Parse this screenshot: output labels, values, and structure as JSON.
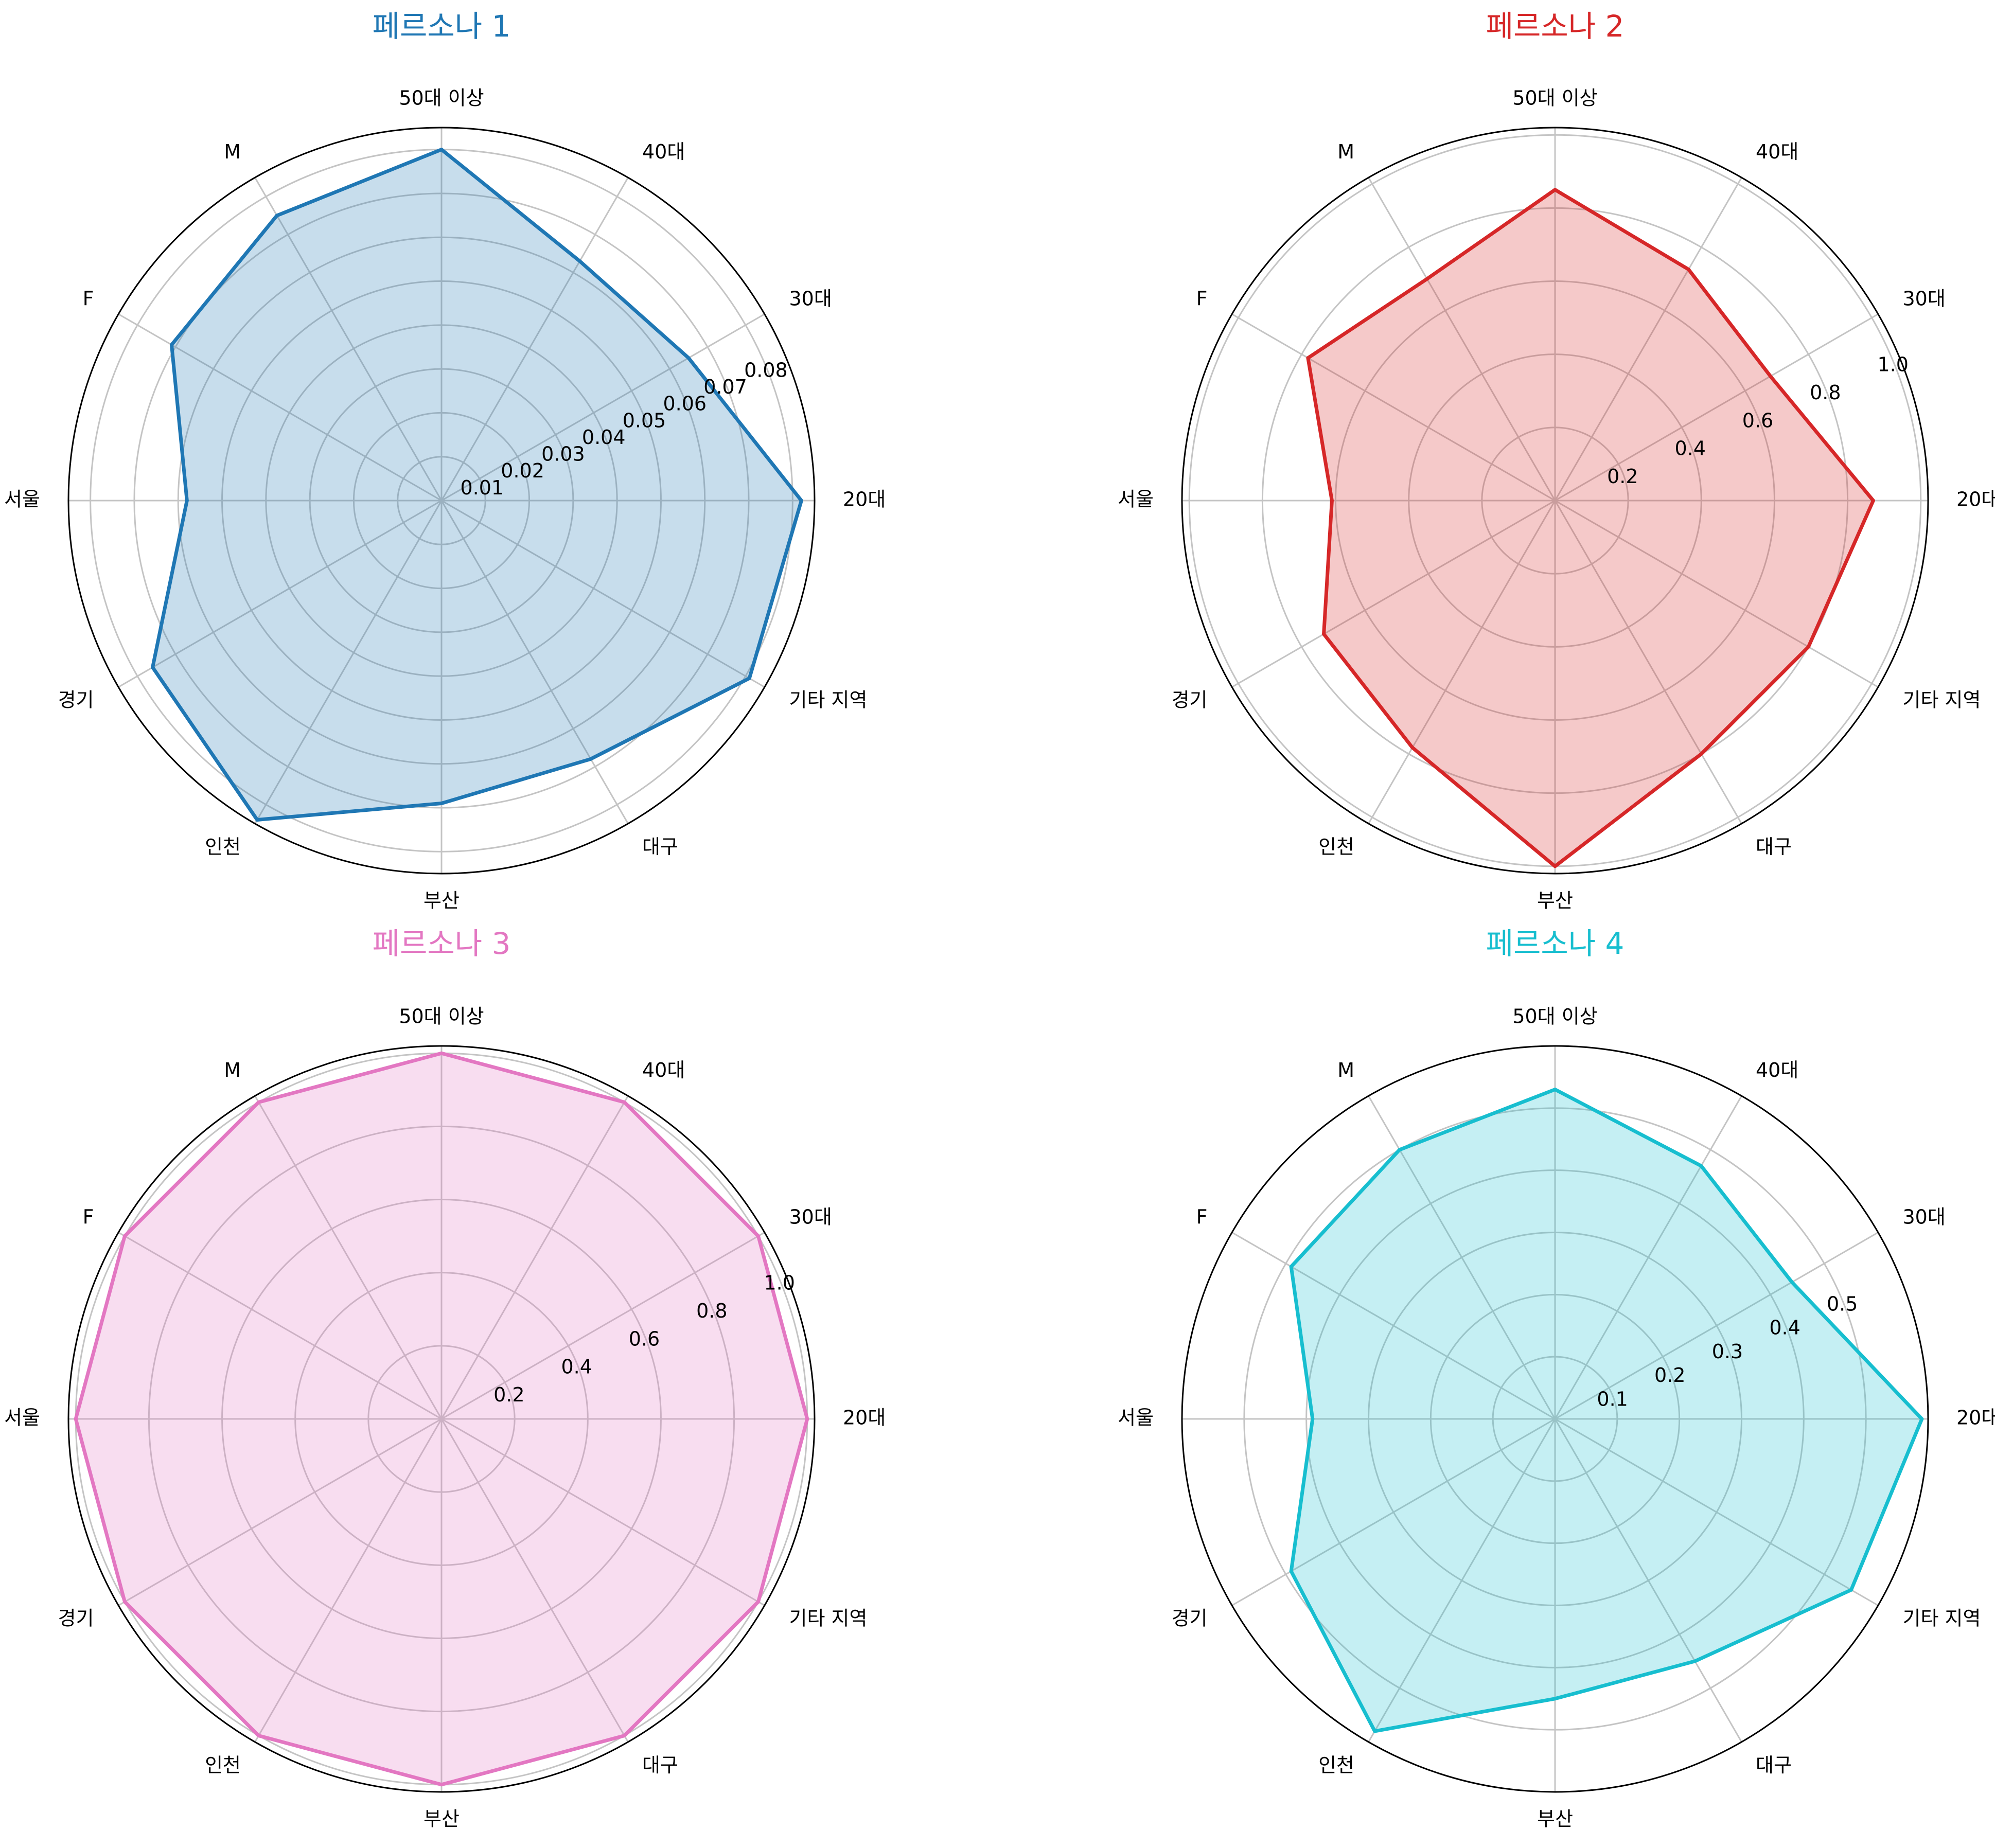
{
  "chart_data": [
    {
      "type": "radar",
      "title": "페르소나 1",
      "color": "#1f77b4",
      "categories": [
        "20대",
        "30대",
        "40대",
        "50대 이상",
        "M",
        "F",
        "서울",
        "경기",
        "인천",
        "부산",
        "대구",
        "기타 지역"
      ],
      "values": [
        0.082,
        0.065,
        0.063,
        0.08,
        0.075,
        0.071,
        0.058,
        0.076,
        0.084,
        0.069,
        0.068,
        0.081
      ],
      "rlim": [
        0,
        0.085
      ],
      "rticks": [
        0.01,
        0.02,
        0.03,
        0.04,
        0.05,
        0.06,
        0.07,
        0.08
      ],
      "rtick_labels": [
        "0.01",
        "0.02",
        "0.03",
        "0.04",
        "0.05",
        "0.06",
        "0.07",
        "0.08"
      ],
      "grid": true
    },
    {
      "type": "radar",
      "title": "페르소나 2",
      "color": "#d62728",
      "categories": [
        "20대",
        "30대",
        "40대",
        "50대 이상",
        "M",
        "F",
        "서울",
        "경기",
        "인천",
        "부산",
        "대구",
        "기타 지역"
      ],
      "values": [
        0.87,
        0.68,
        0.73,
        0.85,
        0.7,
        0.78,
        0.61,
        0.73,
        0.78,
        1.0,
        0.8,
        0.8
      ],
      "rlim": [
        0,
        1.02
      ],
      "rticks": [
        0.2,
        0.4,
        0.6,
        0.8,
        1.0
      ],
      "rtick_labels": [
        "0.2",
        "0.4",
        "0.6",
        "0.8",
        "1.0"
      ],
      "grid": true
    },
    {
      "type": "radar",
      "title": "페르소나 3",
      "color": "#e377c2",
      "categories": [
        "20대",
        "30대",
        "40대",
        "50대 이상",
        "M",
        "F",
        "서울",
        "경기",
        "인천",
        "부산",
        "대구",
        "기타 지역"
      ],
      "values": [
        1.0,
        1.0,
        1.0,
        1.0,
        1.0,
        1.0,
        1.0,
        1.0,
        1.0,
        1.0,
        1.0,
        1.0
      ],
      "rlim": [
        0,
        1.02
      ],
      "rticks": [
        0.2,
        0.4,
        0.6,
        0.8,
        1.0
      ],
      "rtick_labels": [
        "0.2",
        "0.4",
        "0.6",
        "0.8",
        "1.0"
      ],
      "grid": true
    },
    {
      "type": "radar",
      "title": "페르소나 4",
      "color": "#17becf",
      "categories": [
        "20대",
        "30대",
        "40대",
        "50대 이상",
        "M",
        "F",
        "서울",
        "경기",
        "인천",
        "부산",
        "대구",
        "기타 지역"
      ],
      "values": [
        0.59,
        0.44,
        0.47,
        0.53,
        0.5,
        0.49,
        0.39,
        0.49,
        0.58,
        0.45,
        0.45,
        0.55
      ],
      "rlim": [
        0,
        0.6
      ],
      "rticks": [
        0.1,
        0.2,
        0.3,
        0.4,
        0.5
      ],
      "rtick_labels": [
        "0.1",
        "0.2",
        "0.3",
        "0.4",
        "0.5"
      ],
      "grid": true
    }
  ]
}
